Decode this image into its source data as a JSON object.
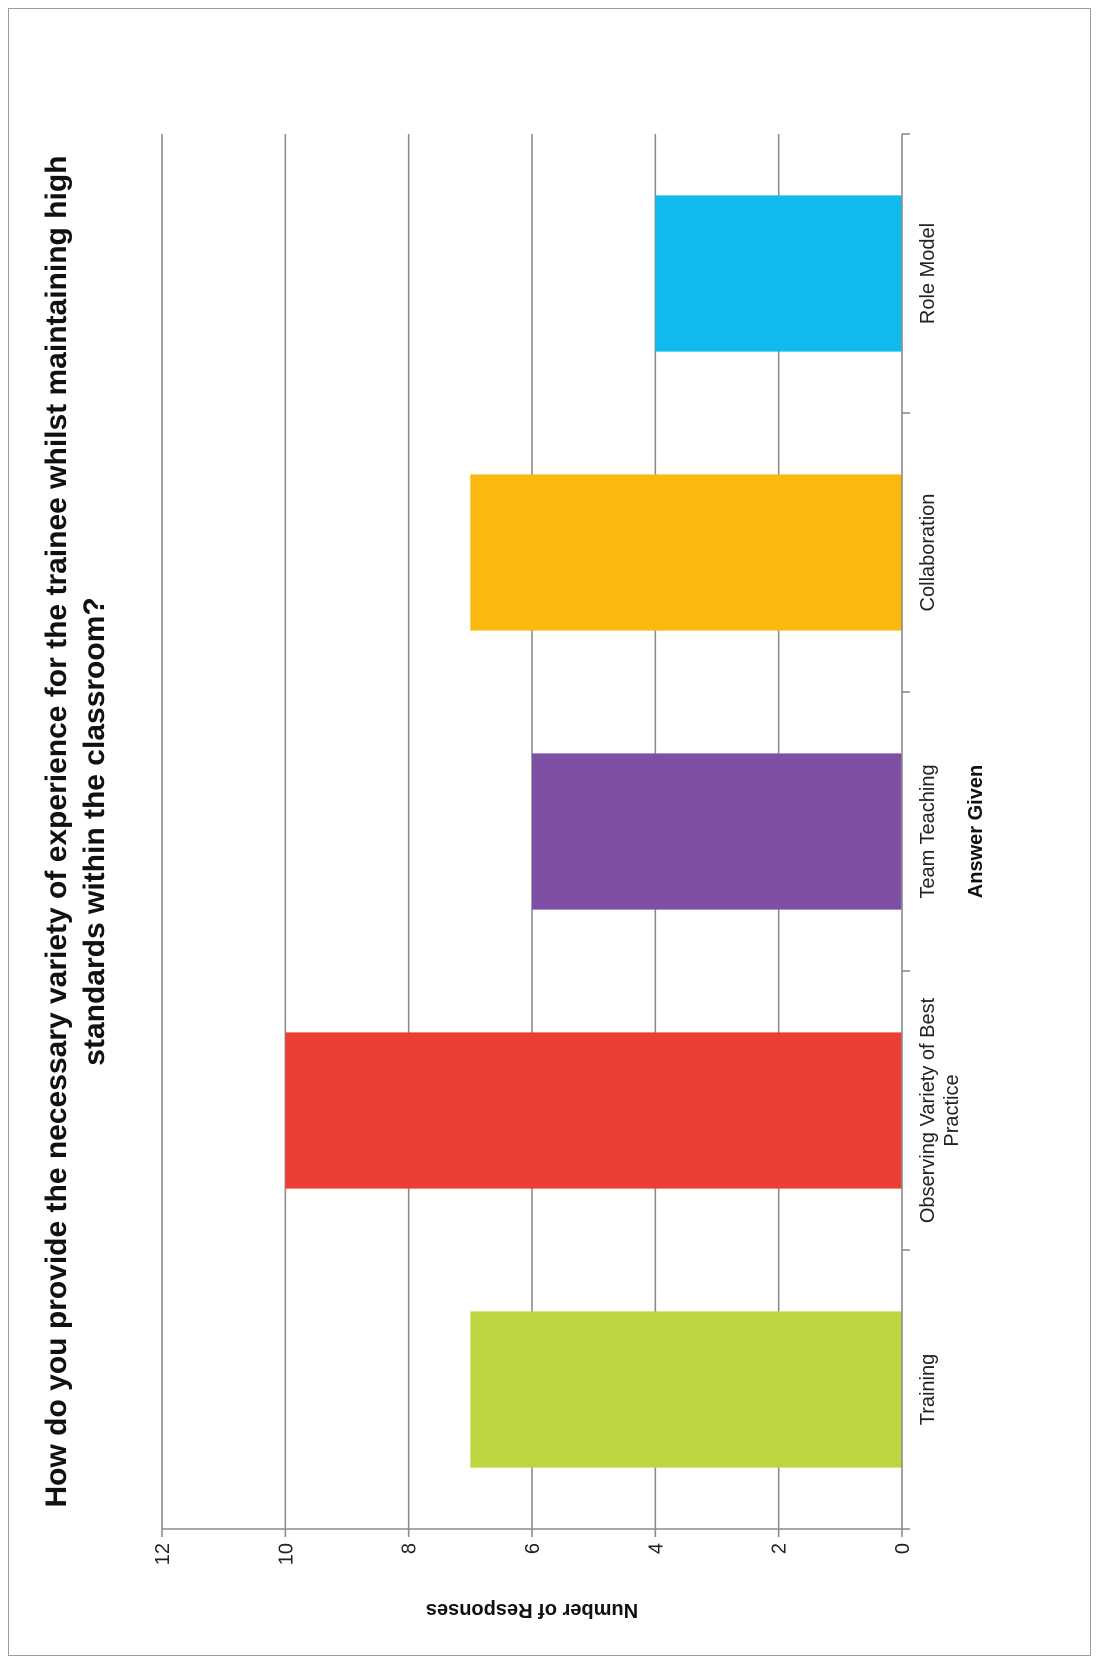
{
  "chart_data": {
    "type": "bar",
    "title_lines": [
      "How do you provide the necessary variety of experience for the trainee whilst maintaining high",
      "standards within the classroom?"
    ],
    "categories": [
      [
        "Training"
      ],
      [
        "Observing Variety of Best",
        "Practice"
      ],
      [
        "Team Teaching"
      ],
      [
        "Collaboration"
      ],
      [
        "Role Model"
      ]
    ],
    "values": [
      7,
      10,
      6,
      7,
      4
    ],
    "colors": [
      "#bcd63f",
      "#ed3e35",
      "#7f4fa5",
      "#fbb90f",
      "#0fbbee"
    ],
    "xlabel": "Answer Given",
    "ylabel": "Number of Responses",
    "ylim": [
      0,
      12
    ],
    "yticks": [
      "0",
      "2",
      "4",
      "6",
      "8",
      "10",
      "12"
    ],
    "grid": true
  }
}
